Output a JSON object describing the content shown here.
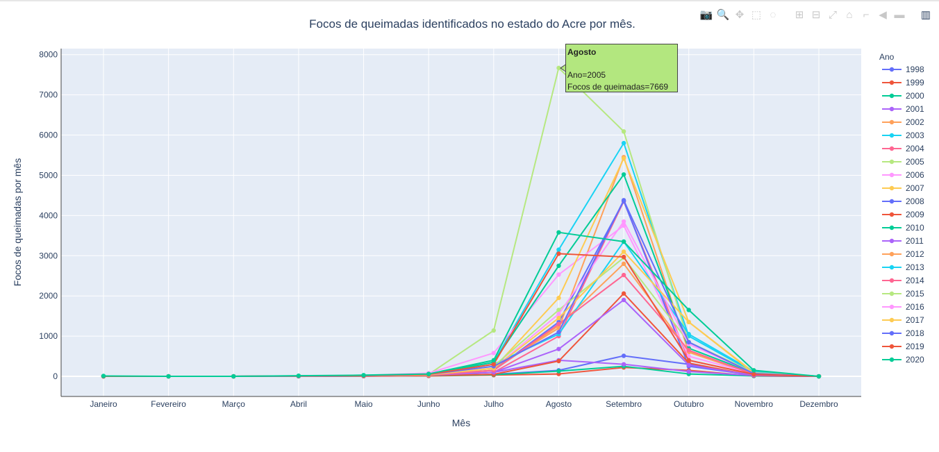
{
  "toolbar": {
    "items": [
      {
        "name": "camera-icon",
        "glyph": "📷"
      },
      {
        "name": "zoom-icon",
        "glyph": "🔍"
      },
      {
        "name": "pan-icon",
        "glyph": "✥"
      },
      {
        "name": "box-select-icon",
        "glyph": "⬚"
      },
      {
        "name": "lasso-select-icon",
        "glyph": "◌"
      },
      {
        "name": "zoom-in-icon",
        "glyph": "⊞"
      },
      {
        "name": "zoom-out-icon",
        "glyph": "⊟"
      },
      {
        "name": "autoscale-icon",
        "glyph": "⤢"
      },
      {
        "name": "reset-axes-icon",
        "glyph": "⌂"
      },
      {
        "name": "spike-lines-icon",
        "glyph": "⌐"
      },
      {
        "name": "hover-closest-icon",
        "glyph": "◀"
      },
      {
        "name": "hover-compare-icon",
        "glyph": "▬"
      },
      {
        "name": "plotly-logo-icon",
        "glyph": "▥"
      }
    ]
  },
  "tooltip": {
    "title": "Agosto",
    "line1": "Ano=2005",
    "line2": "Focos de queimadas=7669"
  },
  "chart_data": {
    "type": "line",
    "title": "Focos de queimadas identificados no estado do Acre por mês.",
    "xlabel": "Mês",
    "ylabel": "Focos de queimadas por mês",
    "legend_title": "Ano",
    "legend_position": "right",
    "grid": true,
    "ylim": [
      -500,
      8150
    ],
    "yticks": [
      0,
      1000,
      2000,
      3000,
      4000,
      5000,
      6000,
      7000,
      8000
    ],
    "categories": [
      "Janeiro",
      "Fevereiro",
      "Março",
      "Abril",
      "Maio",
      "Junho",
      "Julho",
      "Agosto",
      "Setembro",
      "Outubro",
      "Novembro",
      "Dezembro"
    ],
    "series": [
      {
        "name": "1998",
        "color": "#636efa",
        "values": [
          0,
          0,
          0,
          5,
          10,
          20,
          50,
          150,
          510,
          300,
          20,
          0
        ]
      },
      {
        "name": "1999",
        "color": "#EF553B",
        "values": [
          0,
          0,
          0,
          2,
          5,
          10,
          30,
          60,
          220,
          150,
          10,
          0
        ]
      },
      {
        "name": "2000",
        "color": "#00cc96",
        "values": [
          0,
          0,
          0,
          2,
          5,
          15,
          40,
          130,
          250,
          60,
          10,
          0
        ]
      },
      {
        "name": "2001",
        "color": "#ab63fa",
        "values": [
          0,
          0,
          0,
          3,
          10,
          20,
          100,
          400,
          300,
          120,
          20,
          0
        ]
      },
      {
        "name": "2002",
        "color": "#FFA15A",
        "values": [
          0,
          0,
          0,
          5,
          15,
          40,
          200,
          1200,
          5450,
          600,
          50,
          0
        ]
      },
      {
        "name": "2003",
        "color": "#19d3f3",
        "values": [
          0,
          0,
          0,
          10,
          20,
          60,
          350,
          3150,
          5800,
          1000,
          100,
          0
        ]
      },
      {
        "name": "2004",
        "color": "#FF6692",
        "values": [
          0,
          0,
          0,
          5,
          15,
          50,
          100,
          1000,
          4350,
          400,
          50,
          0
        ]
      },
      {
        "name": "2005",
        "color": "#B6E880",
        "values": [
          0,
          0,
          0,
          10,
          20,
          50,
          1140,
          7669,
          6090,
          850,
          100,
          0
        ]
      },
      {
        "name": "2006",
        "color": "#FF97FF",
        "values": [
          0,
          0,
          0,
          10,
          25,
          80,
          580,
          2530,
          3750,
          500,
          60,
          0
        ]
      },
      {
        "name": "2007",
        "color": "#FECB52",
        "values": [
          0,
          0,
          0,
          5,
          15,
          50,
          200,
          1950,
          5420,
          1350,
          100,
          0
        ]
      },
      {
        "name": "2008",
        "color": "#636efa",
        "values": [
          0,
          0,
          0,
          5,
          10,
          40,
          150,
          1350,
          4360,
          250,
          30,
          0
        ]
      },
      {
        "name": "2009",
        "color": "#EF553B",
        "values": [
          0,
          0,
          0,
          2,
          5,
          20,
          50,
          380,
          2060,
          330,
          20,
          0
        ]
      },
      {
        "name": "2010",
        "color": "#00cc96",
        "values": [
          0,
          0,
          0,
          10,
          20,
          50,
          350,
          2750,
          5020,
          700,
          80,
          0
        ]
      },
      {
        "name": "2011",
        "color": "#ab63fa",
        "values": [
          0,
          0,
          0,
          5,
          10,
          30,
          100,
          680,
          1900,
          280,
          30,
          0
        ]
      },
      {
        "name": "2012",
        "color": "#FFA15A",
        "values": [
          0,
          0,
          0,
          5,
          10,
          30,
          150,
          1260,
          2800,
          620,
          60,
          0
        ]
      },
      {
        "name": "2013",
        "color": "#19d3f3",
        "values": [
          0,
          0,
          0,
          5,
          15,
          50,
          300,
          1050,
          3350,
          1050,
          120,
          0
        ]
      },
      {
        "name": "2014",
        "color": "#FF6692",
        "values": [
          0,
          0,
          0,
          5,
          10,
          30,
          150,
          1300,
          2520,
          650,
          50,
          0
        ]
      },
      {
        "name": "2015",
        "color": "#B6E880",
        "values": [
          0,
          0,
          0,
          10,
          20,
          60,
          250,
          1650,
          2950,
          850,
          90,
          0
        ]
      },
      {
        "name": "2016",
        "color": "#FF97FF",
        "values": [
          0,
          0,
          0,
          10,
          20,
          60,
          200,
          1550,
          3850,
          800,
          80,
          0
        ]
      },
      {
        "name": "2017",
        "color": "#FECB52",
        "values": [
          0,
          0,
          0,
          5,
          15,
          40,
          200,
          1450,
          3100,
          1350,
          80,
          0
        ]
      },
      {
        "name": "2018",
        "color": "#636efa",
        "values": [
          0,
          0,
          0,
          5,
          15,
          50,
          250,
          1100,
          4380,
          850,
          70,
          0
        ]
      },
      {
        "name": "2019",
        "color": "#EF553B",
        "values": [
          0,
          0,
          0,
          10,
          20,
          50,
          300,
          3050,
          2970,
          400,
          50,
          0
        ]
      },
      {
        "name": "2020",
        "color": "#00cc96",
        "values": [
          10,
          0,
          0,
          15,
          30,
          60,
          400,
          3580,
          3350,
          1650,
          150,
          0
        ]
      }
    ]
  }
}
